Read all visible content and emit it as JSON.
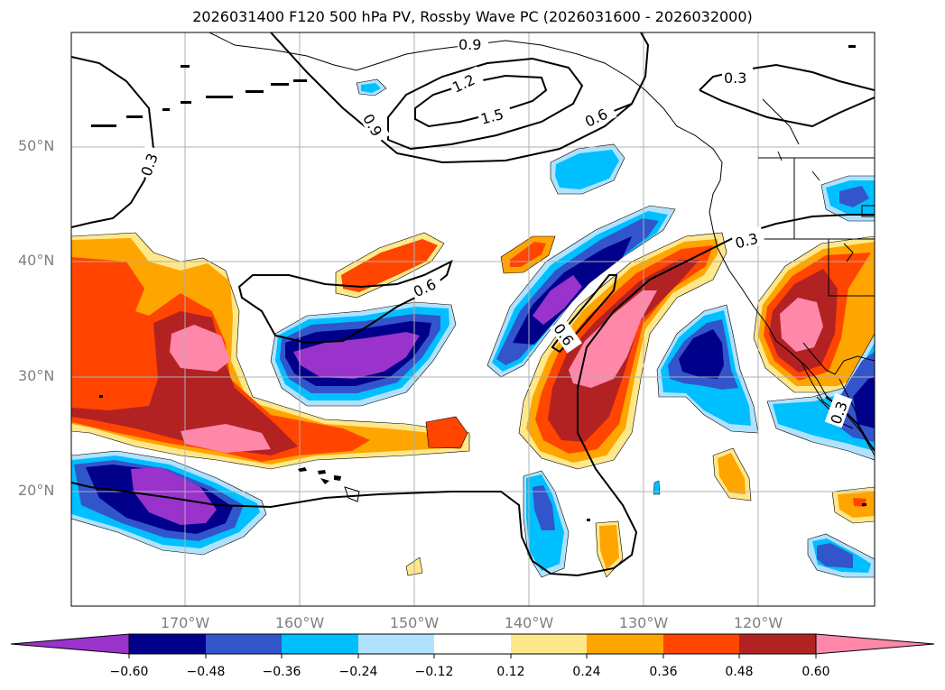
{
  "title": "2026031400 F120 500 hPa PV, Rossby Wave PC (2026031600 - 2026032000)",
  "latitude_labels": [
    "50°N",
    "40°N",
    "30°N",
    "20°N"
  ],
  "longitude_labels": [
    "170°W",
    "160°W",
    "150°W",
    "140°W",
    "130°W",
    "120°W"
  ],
  "colorbar": {
    "ticks": [
      "−0.60",
      "−0.48",
      "−0.36",
      "−0.24",
      "−0.12",
      "0.12",
      "0.24",
      "0.36",
      "0.48",
      "0.60"
    ],
    "colors": [
      "#9933cc",
      "#00008b",
      "#3355cc",
      "#00bfff",
      "#b0e2ff",
      "#ffffff",
      "#ffe88a",
      "#ffa500",
      "#ff4500",
      "#b22222",
      "#ff88aa"
    ]
  },
  "contour_labels": [
    "0.9",
    "1.2",
    "1.5",
    "0.6",
    "0.3",
    "0.9",
    "0.3",
    "0.6",
    "0.3",
    "0.6",
    "0.3"
  ]
}
